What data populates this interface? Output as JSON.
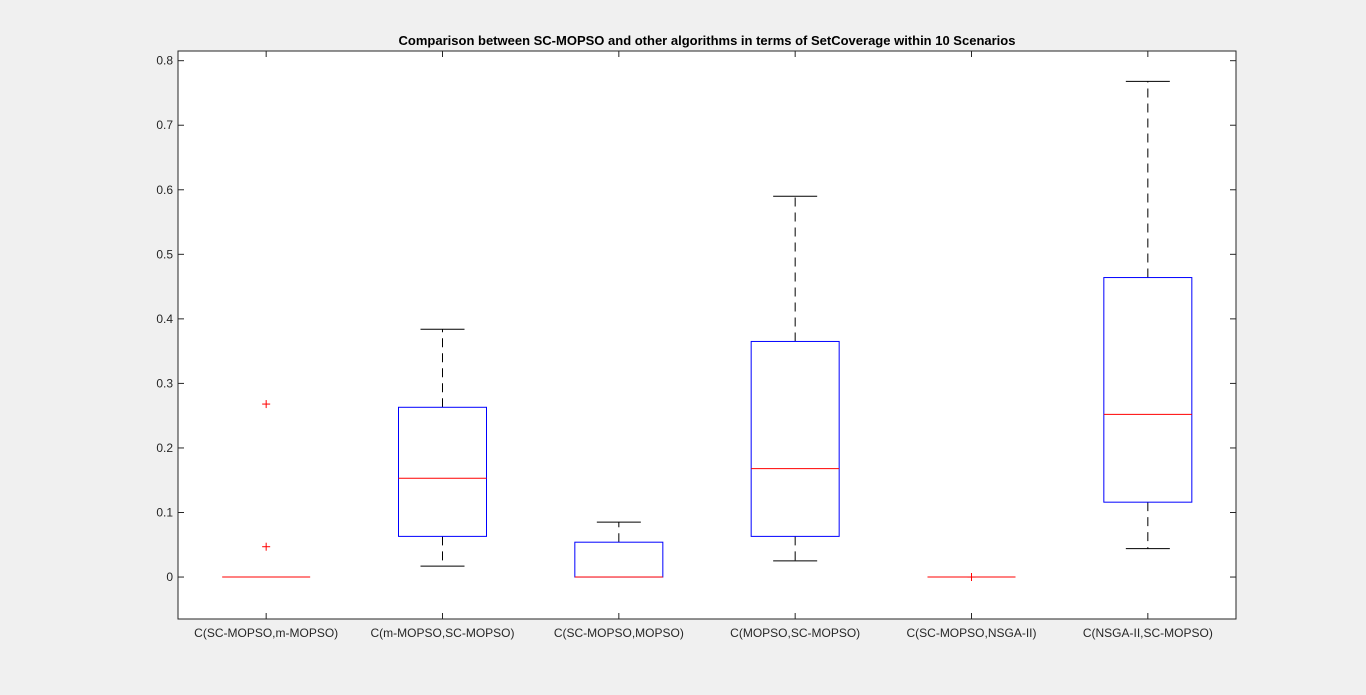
{
  "chart_data": {
    "type": "box",
    "title": "Comparison between SC-MOPSO and other algorithms in terms of SetCoverage within 10 Scenarios",
    "xlabel": "",
    "ylabel": "",
    "ylim": [
      -0.065,
      0.815
    ],
    "yticks": [
      0,
      0.1,
      0.2,
      0.3,
      0.4,
      0.5,
      0.6,
      0.7,
      0.8
    ],
    "ytick_labels": [
      "0",
      "0.1",
      "0.2",
      "0.3",
      "0.4",
      "0.5",
      "0.6",
      "0.7",
      "0.8"
    ],
    "grid": false,
    "categories": [
      "C(SC-MOPSO,m-MOPSO)",
      "C(m-MOPSO,SC-MOPSO)",
      "C(SC-MOPSO,MOPSO)",
      "C(MOPSO,SC-MOPSO)",
      "C(SC-MOPSO,NSGA-II)",
      "C(NSGA-II,SC-MOPSO)"
    ],
    "boxes": [
      {
        "whisker_low": 0,
        "q1": 0,
        "median": 0,
        "q3": 0,
        "whisker_high": 0,
        "outliers": [
          0.268,
          0.047
        ]
      },
      {
        "whisker_low": 0.017,
        "q1": 0.063,
        "median": 0.153,
        "q3": 0.263,
        "whisker_high": 0.384,
        "outliers": []
      },
      {
        "whisker_low": 0,
        "q1": 0,
        "median": 0,
        "q3": 0.054,
        "whisker_high": 0.085,
        "outliers": []
      },
      {
        "whisker_low": 0.025,
        "q1": 0.063,
        "median": 0.168,
        "q3": 0.365,
        "whisker_high": 0.59,
        "outliers": []
      },
      {
        "whisker_low": 0,
        "q1": 0,
        "median": 0,
        "q3": 0,
        "whisker_high": 0,
        "outliers": [
          0
        ]
      },
      {
        "whisker_low": 0.044,
        "q1": 0.116,
        "median": 0.252,
        "q3": 0.464,
        "whisker_high": 0.768,
        "outliers": []
      }
    ],
    "colors": {
      "box": "#0000ff",
      "median": "#ff0000",
      "whisker": "#000000",
      "outlier": "#ff0000",
      "axes": "#262626",
      "plot_bg": "#ffffff",
      "figure_bg": "#f0f0f0"
    }
  }
}
